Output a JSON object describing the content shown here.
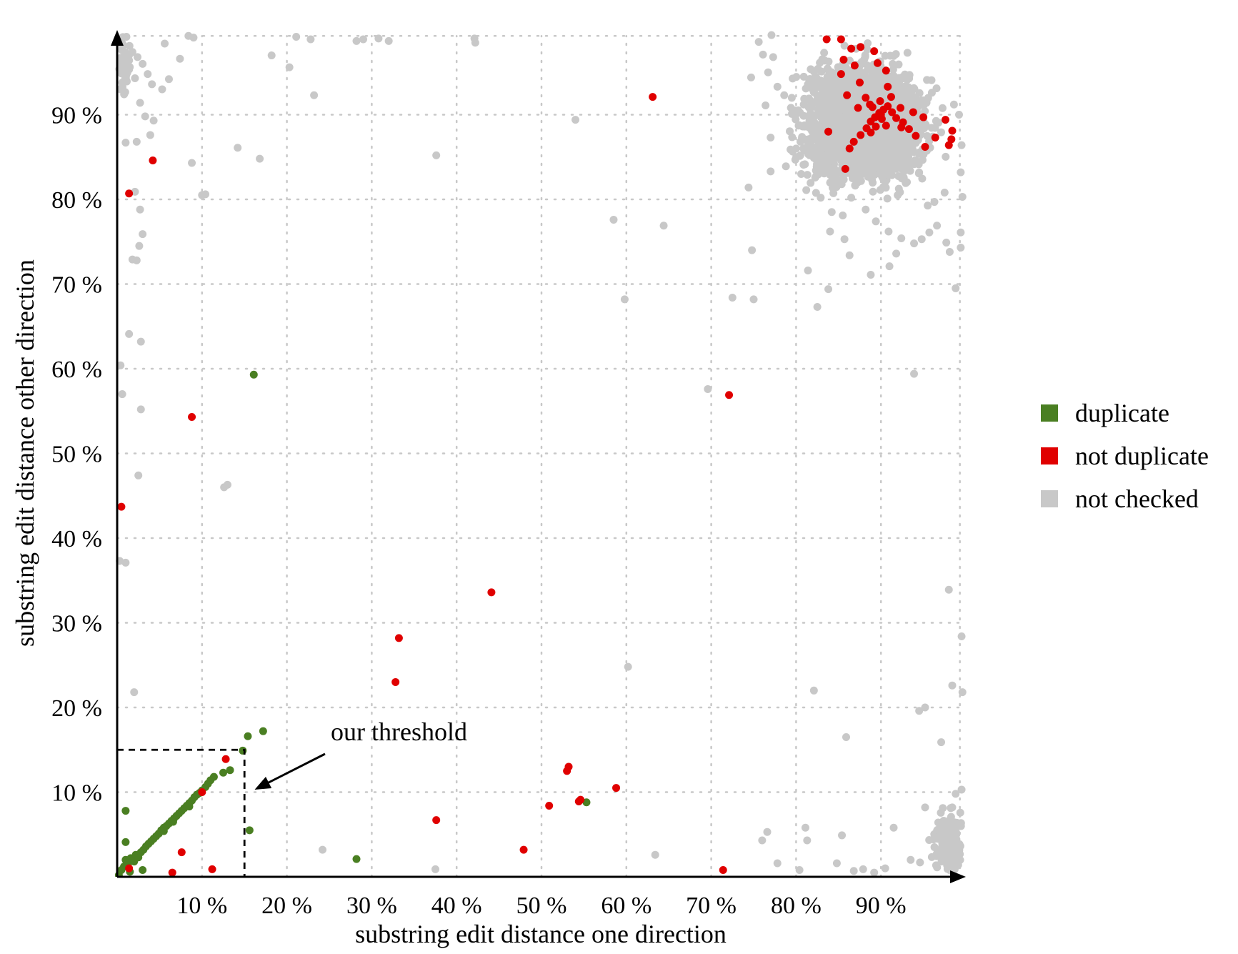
{
  "chart_data": {
    "type": "scatter",
    "title": "",
    "xlabel": "substring edit distance one direction",
    "ylabel": "substring edit distance other direction",
    "xlim": [
      0,
      100
    ],
    "ylim": [
      0,
      100
    ],
    "x_ticks": [
      10,
      20,
      30,
      40,
      50,
      60,
      70,
      80,
      90
    ],
    "y_ticks": [
      10,
      20,
      30,
      40,
      50,
      60,
      70,
      80,
      90
    ],
    "x_tick_labels": [
      "10 %",
      "20 %",
      "30 %",
      "40 %",
      "50 %",
      "60 %",
      "70 %",
      "80 %",
      "90 %"
    ],
    "y_tick_labels": [
      "10 %",
      "20 %",
      "30 %",
      "40 %",
      "50 %",
      "60 %",
      "70 %",
      "80 %",
      "90 %"
    ],
    "grid": true,
    "legend_position": "right",
    "series": [
      {
        "name": "duplicate",
        "color": "#4a7f22",
        "points": [
          [
            0.2,
            0.2
          ],
          [
            0.5,
            0.8
          ],
          [
            0.8,
            1.2
          ],
          [
            1.0,
            2.0
          ],
          [
            1.3,
            1.6
          ],
          [
            1.6,
            2.2
          ],
          [
            2.0,
            1.8
          ],
          [
            2.2,
            2.6
          ],
          [
            2.5,
            2.3
          ],
          [
            2.8,
            2.9
          ],
          [
            3.1,
            3.2
          ],
          [
            3.4,
            3.6
          ],
          [
            3.7,
            3.9
          ],
          [
            4.0,
            4.2
          ],
          [
            4.3,
            4.5
          ],
          [
            4.6,
            4.8
          ],
          [
            4.9,
            5.1
          ],
          [
            5.2,
            5.5
          ],
          [
            5.5,
            5.8
          ],
          [
            5.8,
            6.0
          ],
          [
            6.1,
            6.3
          ],
          [
            6.4,
            6.6
          ],
          [
            6.7,
            6.9
          ],
          [
            7.0,
            7.2
          ],
          [
            7.3,
            7.5
          ],
          [
            7.6,
            7.8
          ],
          [
            7.9,
            8.1
          ],
          [
            8.2,
            8.4
          ],
          [
            8.5,
            8.7
          ],
          [
            8.8,
            9.0
          ],
          [
            9.1,
            9.4
          ],
          [
            9.4,
            9.7
          ],
          [
            9.7,
            9.9
          ],
          [
            10.0,
            10.2
          ],
          [
            10.4,
            10.6
          ],
          [
            10.7,
            11.0
          ],
          [
            11.0,
            11.4
          ],
          [
            11.4,
            11.8
          ],
          [
            12.5,
            12.3
          ],
          [
            13.3,
            12.6
          ],
          [
            14.8,
            14.9
          ],
          [
            15.4,
            16.6
          ],
          [
            17.2,
            17.2
          ],
          [
            15.6,
            5.5
          ],
          [
            16.1,
            59.3
          ],
          [
            28.2,
            2.1
          ],
          [
            55.3,
            8.8
          ],
          [
            1.0,
            7.8
          ],
          [
            1.0,
            4.1
          ],
          [
            3.0,
            0.8
          ],
          [
            1.5,
            0.6
          ],
          [
            5.5,
            5.4
          ],
          [
            6.6,
            6.5
          ],
          [
            8.5,
            8.3
          ]
        ]
      },
      {
        "name": "not duplicate",
        "color": "#e00000",
        "points": [
          [
            0.5,
            43.7
          ],
          [
            1.4,
            80.7
          ],
          [
            4.2,
            84.6
          ],
          [
            8.8,
            54.3
          ],
          [
            12.8,
            13.9
          ],
          [
            10.0,
            10.0
          ],
          [
            11.2,
            0.9
          ],
          [
            7.6,
            2.9
          ],
          [
            6.5,
            0.5
          ],
          [
            1.4,
            1.0
          ],
          [
            33.2,
            28.2
          ],
          [
            32.8,
            23.0
          ],
          [
            37.6,
            6.7
          ],
          [
            44.1,
            33.6
          ],
          [
            47.9,
            3.2
          ],
          [
            50.9,
            8.4
          ],
          [
            53.0,
            12.5
          ],
          [
            53.2,
            13.0
          ],
          [
            54.4,
            8.9
          ],
          [
            54.6,
            9.1
          ],
          [
            58.8,
            10.5
          ],
          [
            63.1,
            92.1
          ],
          [
            72.1,
            56.9
          ],
          [
            71.4,
            0.8
          ],
          [
            83.6,
            98.9
          ],
          [
            83.8,
            88.0
          ],
          [
            85.3,
            98.9
          ],
          [
            85.8,
            83.6
          ],
          [
            86.3,
            86.0
          ],
          [
            86.8,
            86.8
          ],
          [
            87.6,
            87.6
          ],
          [
            88.3,
            88.4
          ],
          [
            88.8,
            89.2
          ],
          [
            89.3,
            89.7
          ],
          [
            89.8,
            90.2
          ],
          [
            90.3,
            90.6
          ],
          [
            90.8,
            91.0
          ],
          [
            91.3,
            90.3
          ],
          [
            91.8,
            89.6
          ],
          [
            92.6,
            89.1
          ],
          [
            93.3,
            88.3
          ],
          [
            94.1,
            87.5
          ],
          [
            95.2,
            86.2
          ],
          [
            96.4,
            87.3
          ],
          [
            98.3,
            87.1
          ],
          [
            98.4,
            88.1
          ],
          [
            86.5,
            97.8
          ],
          [
            86.9,
            95.8
          ],
          [
            87.5,
            93.8
          ],
          [
            88.2,
            92.0
          ],
          [
            88.7,
            91.2
          ],
          [
            87.3,
            90.8
          ],
          [
            86.0,
            92.3
          ],
          [
            85.3,
            94.8
          ],
          [
            85.6,
            96.5
          ],
          [
            87.6,
            98.0
          ],
          [
            89.2,
            97.5
          ],
          [
            89.6,
            96.1
          ],
          [
            90.6,
            95.2
          ],
          [
            90.8,
            93.3
          ],
          [
            91.2,
            92.1
          ],
          [
            89.9,
            91.6
          ],
          [
            89.0,
            90.9
          ],
          [
            90.1,
            89.5
          ],
          [
            90.6,
            88.7
          ],
          [
            89.4,
            88.6
          ],
          [
            88.8,
            87.9
          ],
          [
            92.3,
            90.8
          ],
          [
            93.8,
            90.3
          ],
          [
            95.0,
            89.7
          ],
          [
            97.6,
            89.4
          ],
          [
            98.0,
            86.4
          ],
          [
            92.4,
            88.5
          ],
          [
            90.0,
            90.0
          ]
        ]
      },
      {
        "name": "not checked",
        "color": "#c8c8c8",
        "points": [
          [
            0.6,
            98.0
          ],
          [
            0.8,
            96.5
          ],
          [
            1.2,
            95.0
          ],
          [
            0.4,
            93.0
          ],
          [
            1.8,
            97.4
          ],
          [
            2.4,
            96.8
          ],
          [
            3.0,
            96.0
          ],
          [
            2.1,
            94.3
          ],
          [
            3.6,
            94.8
          ],
          [
            4.1,
            93.6
          ],
          [
            5.3,
            93.0
          ],
          [
            6.1,
            94.2
          ],
          [
            7.4,
            96.6
          ],
          [
            5.6,
            98.4
          ],
          [
            8.4,
            99.3
          ],
          [
            9.0,
            99.1
          ],
          [
            2.7,
            91.4
          ],
          [
            3.3,
            89.8
          ],
          [
            4.3,
            89.3
          ],
          [
            3.9,
            87.6
          ],
          [
            2.3,
            86.8
          ],
          [
            1.0,
            86.7
          ],
          [
            8.8,
            84.3
          ],
          [
            10.0,
            80.5
          ],
          [
            10.4,
            80.6
          ],
          [
            2.1,
            80.9
          ],
          [
            2.7,
            78.8
          ],
          [
            3.0,
            75.9
          ],
          [
            2.6,
            74.5
          ],
          [
            2.3,
            72.8
          ],
          [
            1.8,
            72.9
          ],
          [
            1.4,
            64.1
          ],
          [
            2.8,
            63.2
          ],
          [
            0.4,
            60.4
          ],
          [
            0.6,
            57.0
          ],
          [
            2.8,
            55.2
          ],
          [
            2.5,
            47.4
          ],
          [
            0.3,
            37.3
          ],
          [
            1.0,
            37.1
          ],
          [
            2.0,
            21.8
          ],
          [
            13.0,
            46.3
          ],
          [
            12.6,
            46.0
          ],
          [
            14.2,
            86.1
          ],
          [
            16.8,
            84.8
          ],
          [
            18.2,
            97.0
          ],
          [
            20.3,
            95.6
          ],
          [
            21.1,
            99.2
          ],
          [
            22.8,
            98.9
          ],
          [
            23.2,
            92.3
          ],
          [
            28.2,
            98.7
          ],
          [
            29.0,
            98.9
          ],
          [
            30.8,
            99.0
          ],
          [
            32.0,
            98.7
          ],
          [
            42.1,
            99.0
          ],
          [
            42.2,
            98.5
          ],
          [
            37.6,
            85.2
          ],
          [
            54.0,
            89.4
          ],
          [
            58.5,
            77.6
          ],
          [
            59.8,
            68.2
          ],
          [
            64.4,
            76.9
          ],
          [
            60.2,
            24.8
          ],
          [
            24.2,
            3.2
          ],
          [
            37.5,
            0.9
          ],
          [
            63.4,
            2.6
          ],
          [
            69.6,
            57.6
          ],
          [
            74.4,
            81.4
          ],
          [
            74.8,
            74.0
          ],
          [
            75.0,
            68.2
          ],
          [
            76.6,
            5.3
          ],
          [
            76.0,
            4.3
          ],
          [
            77.8,
            1.6
          ],
          [
            80.4,
            0.8
          ],
          [
            81.3,
            4.3
          ],
          [
            82.1,
            22.0
          ],
          [
            81.1,
            5.8
          ],
          [
            84.8,
            1.6
          ],
          [
            85.4,
            4.9
          ],
          [
            85.9,
            16.5
          ],
          [
            86.8,
            0.7
          ],
          [
            87.9,
            0.9
          ],
          [
            89.2,
            0.5
          ],
          [
            90.5,
            1.0
          ],
          [
            91.5,
            5.8
          ],
          [
            93.5,
            2.0
          ],
          [
            94.6,
            1.7
          ],
          [
            95.2,
            8.2
          ],
          [
            96.3,
            3.5
          ],
          [
            97.2,
            4.5
          ],
          [
            97.8,
            6.3
          ],
          [
            98.4,
            8.2
          ],
          [
            98.8,
            9.8
          ],
          [
            99.0,
            2.7
          ],
          [
            99.3,
            6.0
          ],
          [
            99.5,
            10.3
          ],
          [
            99.1,
            1.4
          ],
          [
            98.1,
            0.8
          ],
          [
            97.1,
            15.9
          ],
          [
            98.4,
            22.6
          ],
          [
            99.6,
            21.8
          ],
          [
            99.5,
            28.4
          ],
          [
            98.0,
            33.9
          ],
          [
            98.8,
            69.5
          ],
          [
            95.2,
            20.0
          ],
          [
            94.5,
            19.6
          ],
          [
            93.9,
            59.4
          ],
          [
            99.4,
            74.3
          ],
          [
            99.4,
            76.1
          ],
          [
            99.6,
            80.3
          ],
          [
            99.4,
            83.2
          ],
          [
            99.5,
            86.4
          ],
          [
            99.2,
            90.0
          ],
          [
            98.6,
            91.2
          ],
          [
            82.5,
            67.3
          ],
          [
            83.8,
            69.4
          ],
          [
            81.4,
            71.6
          ],
          [
            86.3,
            73.4
          ],
          [
            85.7,
            75.3
          ],
          [
            84.0,
            76.2
          ],
          [
            88.8,
            71.1
          ],
          [
            91.0,
            72.1
          ],
          [
            91.8,
            73.6
          ],
          [
            93.9,
            74.8
          ],
          [
            95.7,
            76.1
          ],
          [
            96.6,
            76.9
          ],
          [
            97.7,
            74.9
          ],
          [
            98.1,
            73.8
          ],
          [
            75.6,
            98.6
          ],
          [
            77.1,
            99.4
          ],
          [
            77.3,
            96.8
          ],
          [
            76.7,
            95.0
          ],
          [
            77.8,
            93.3
          ],
          [
            76.4,
            91.1
          ],
          [
            78.6,
            92.3
          ],
          [
            77.0,
            87.3
          ],
          [
            79.5,
            90.1
          ],
          [
            74.7,
            94.4
          ],
          [
            76.1,
            97.1
          ],
          [
            78.8,
            83.9
          ],
          [
            80.6,
            83.0
          ],
          [
            81.2,
            81.1
          ],
          [
            82.9,
            80.2
          ],
          [
            84.2,
            78.5
          ],
          [
            85.5,
            78.1
          ],
          [
            86.5,
            80.2
          ],
          [
            88.2,
            78.8
          ],
          [
            89.4,
            77.4
          ],
          [
            90.9,
            76.2
          ],
          [
            92.4,
            75.4
          ],
          [
            94.8,
            75.3
          ],
          [
            96.3,
            79.7
          ],
          [
            97.5,
            80.8
          ],
          [
            72.5,
            68.4
          ],
          [
            77.0,
            83.3
          ],
          [
            80.0,
            86.0
          ]
        ],
        "dense_clusters": [
          {
            "x_range": [
              79,
              99.5
            ],
            "y_range": [
              79,
              99.5
            ],
            "center": [
              88,
              89
            ],
            "count": 2600
          },
          {
            "x_range": [
              94,
              99.5
            ],
            "y_range": [
              0.3,
              11
            ],
            "center": [
              98,
              4
            ],
            "count": 160
          },
          {
            "x_range": [
              0.2,
              2.5
            ],
            "y_range": [
              88,
              99.5
            ],
            "center": [
              0.8,
              96
            ],
            "count": 45
          }
        ]
      }
    ],
    "threshold": {
      "x": 15,
      "y": 15,
      "label": "our threshold",
      "arrow_to": [
        16.2,
        10.3
      ]
    }
  }
}
